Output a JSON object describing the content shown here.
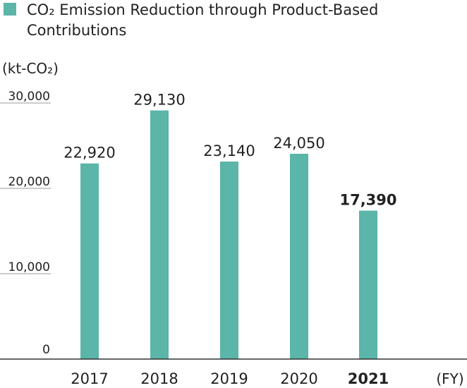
{
  "chart_data": {
    "type": "bar",
    "legend": {
      "label_line1": "CO₂ Emission Reduction through Product-Based",
      "label_line2": "Contributions",
      "placement": "top-left"
    },
    "ylabel": "(kt-CO₂)",
    "xlabel": "(FY)",
    "categories": [
      "2017",
      "2018",
      "2019",
      "2020",
      "2021"
    ],
    "values": [
      22920,
      29130,
      23140,
      24050,
      17390
    ],
    "value_labels": [
      "22,920",
      "29,130",
      "23,140",
      "24,050",
      "17,390"
    ],
    "highlight_index": 4,
    "ylim": [
      0,
      30000
    ],
    "yticks": [
      0,
      10000,
      20000,
      30000
    ],
    "ytick_labels": [
      "0",
      "10,000",
      "20,000",
      "30,000"
    ],
    "grid": false,
    "colors": {
      "bar": "#5bb5a8",
      "text": "#222222",
      "axis": "#333333",
      "tick": "#999999"
    }
  }
}
